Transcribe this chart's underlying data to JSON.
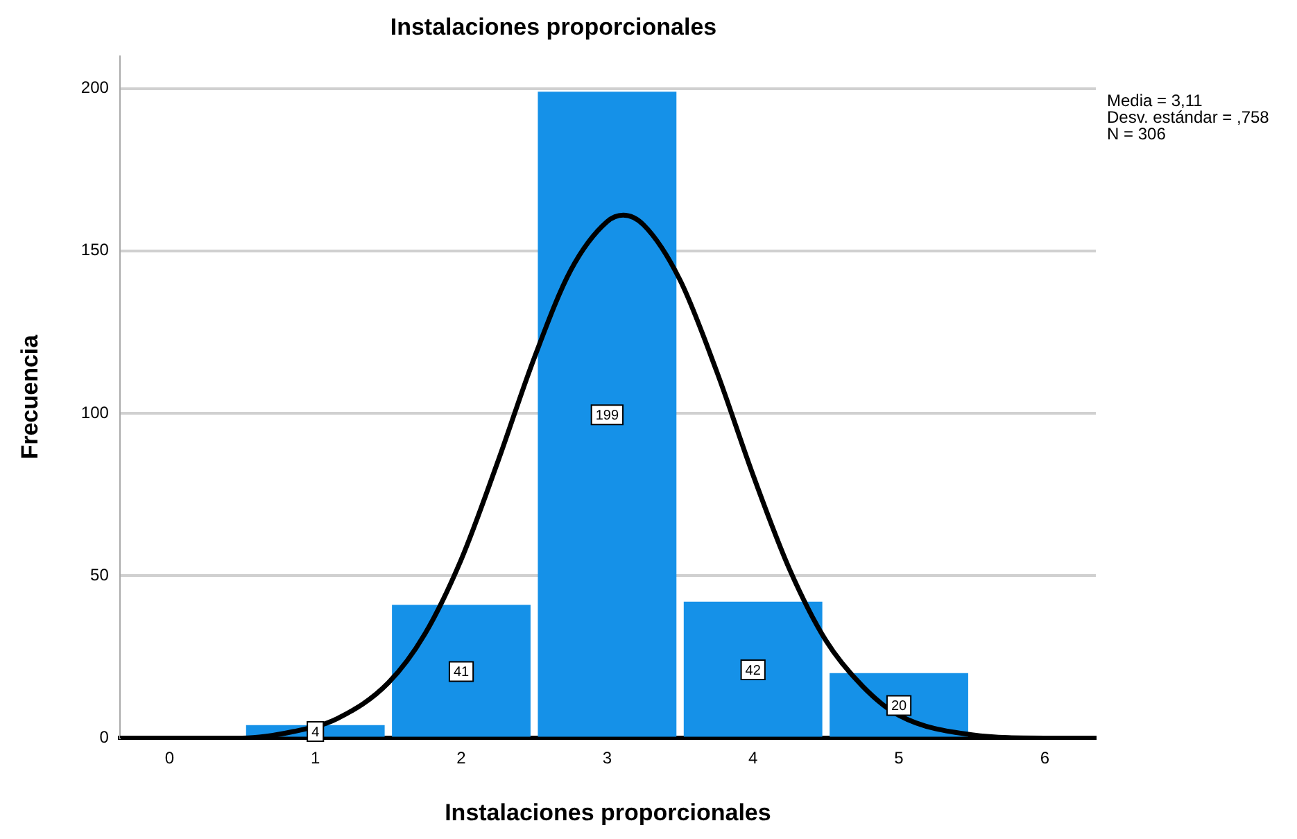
{
  "chart_data": {
    "type": "histogram",
    "title": "Instalaciones proporcionales",
    "xlabel": "Instalaciones proporcionales",
    "ylabel": "Frecuencia",
    "bins": [
      0.5,
      1.5,
      2.5,
      3.5,
      4.5,
      5.5
    ],
    "values": [
      4,
      41,
      199,
      42,
      20
    ],
    "color": "#1591e8",
    "value_labels": [
      "4",
      "41",
      "199",
      "42",
      "20"
    ],
    "series": [
      {
        "type": "line",
        "color": "#000000",
        "marker": "none",
        "x": [
          -0.34,
          0,
          0.5,
          0.85,
          1.15,
          1.5,
          1.75,
          2,
          2.25,
          2.5,
          2.75,
          3,
          3.11,
          3.25,
          3.5,
          3.75,
          4,
          4.25,
          4.5,
          4.75,
          5,
          5.5,
          6,
          6.35
        ],
        "values": [
          0,
          0,
          0,
          2,
          6,
          17,
          32,
          55,
          85,
          117,
          144,
          159,
          161,
          158,
          141,
          113,
          81,
          52,
          30,
          16,
          7,
          1,
          0,
          0
        ]
      }
    ],
    "xlim": [
      -0.34,
      6.35
    ],
    "xticks": [
      0,
      1,
      2,
      3,
      4,
      5,
      6
    ],
    "ylim": [
      0,
      210
    ],
    "yticks": [
      0,
      50,
      100,
      150,
      200
    ],
    "grid": "y",
    "legend": false,
    "annotations": [
      "Media = 3,11",
      "Desv. estándar = ,758",
      "N = 306"
    ]
  }
}
